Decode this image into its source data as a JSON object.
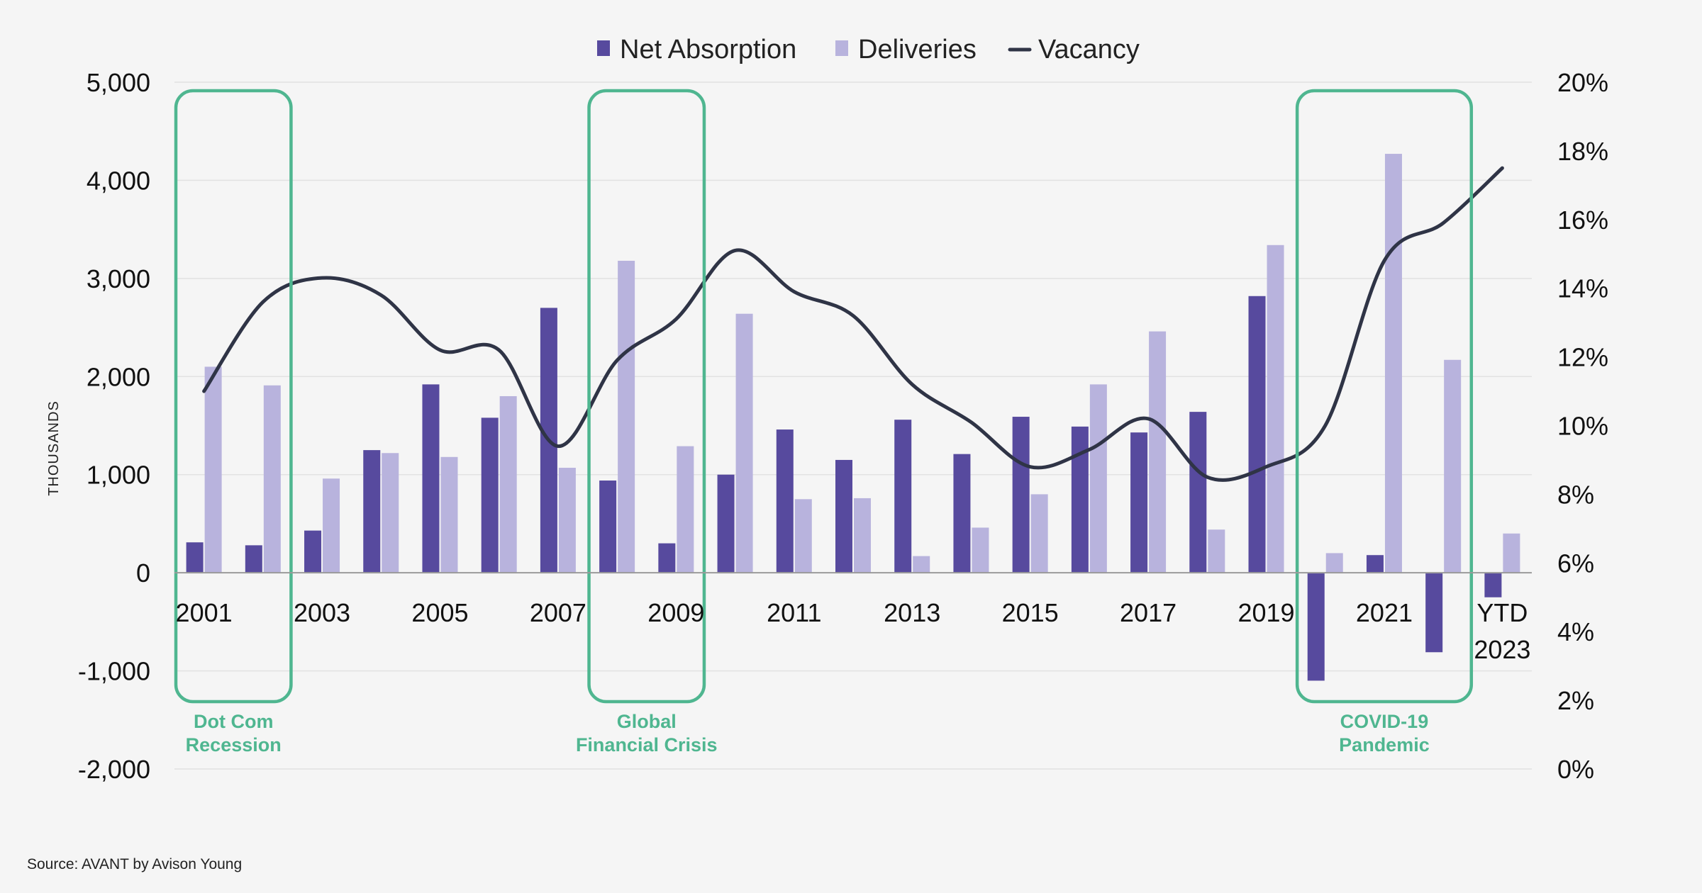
{
  "chart_data": {
    "type": "bar",
    "categories": [
      "2001",
      "2002",
      "2003",
      "2004",
      "2005",
      "2006",
      "2007",
      "2008",
      "2009",
      "2010",
      "2011",
      "2012",
      "2013",
      "2014",
      "2015",
      "2016",
      "2017",
      "2018",
      "2019",
      "2020",
      "2021",
      "2022",
      "YTD 2023"
    ],
    "x_tick_labels": [
      {
        "index": 0,
        "lines": [
          "2001"
        ]
      },
      {
        "index": 2,
        "lines": [
          "2003"
        ]
      },
      {
        "index": 4,
        "lines": [
          "2005"
        ]
      },
      {
        "index": 6,
        "lines": [
          "2007"
        ]
      },
      {
        "index": 8,
        "lines": [
          "2009"
        ]
      },
      {
        "index": 10,
        "lines": [
          "2011"
        ]
      },
      {
        "index": 12,
        "lines": [
          "2013"
        ]
      },
      {
        "index": 14,
        "lines": [
          "2015"
        ]
      },
      {
        "index": 16,
        "lines": [
          "2017"
        ]
      },
      {
        "index": 18,
        "lines": [
          "2019"
        ]
      },
      {
        "index": 20,
        "lines": [
          "2021"
        ]
      },
      {
        "index": 22,
        "lines": [
          "YTD",
          "2023"
        ]
      }
    ],
    "series": [
      {
        "name": "Net Absorption",
        "type": "bar",
        "axis": "left",
        "color": "#574a9e",
        "values": [
          310,
          280,
          430,
          1250,
          1920,
          1580,
          2700,
          940,
          300,
          1000,
          1460,
          1150,
          1560,
          1210,
          1590,
          1490,
          1430,
          1640,
          2820,
          -1100,
          180,
          -810,
          -250
        ]
      },
      {
        "name": "Deliveries",
        "type": "bar",
        "axis": "left",
        "color": "#b8b3dd",
        "values": [
          2100,
          1910,
          960,
          1220,
          1180,
          1800,
          1070,
          3180,
          1290,
          2640,
          750,
          760,
          170,
          460,
          800,
          1920,
          2460,
          440,
          3340,
          200,
          4270,
          2170,
          400
        ]
      },
      {
        "name": "Vacancy",
        "type": "line",
        "axis": "right",
        "color": "#2f3446",
        "values": [
          11.0,
          13.6,
          14.3,
          13.8,
          12.2,
          12.2,
          9.4,
          11.9,
          13.1,
          15.1,
          13.9,
          13.2,
          11.2,
          10.1,
          8.8,
          9.3,
          10.2,
          8.5,
          8.8,
          10.0,
          14.8,
          15.9,
          17.5
        ]
      }
    ],
    "y_left": {
      "label": "THOUSANDS",
      "min": -2000,
      "max": 5000,
      "ticks": [
        5000,
        4000,
        3000,
        2000,
        1000,
        0,
        -1000,
        -2000
      ],
      "tick_labels": [
        "5,000",
        "4,000",
        "3,000",
        "2,000",
        "1,000",
        "0",
        "-1,000",
        "-2,000"
      ]
    },
    "y_right": {
      "label": "",
      "min": 0,
      "max": 20,
      "ticks": [
        20,
        18,
        16,
        14,
        12,
        10,
        8,
        6,
        4,
        2,
        0
      ],
      "tick_labels": [
        "20%",
        "18%",
        "16%",
        "14%",
        "12%",
        "10%",
        "8%",
        "6%",
        "4%",
        "2%",
        "0%"
      ]
    },
    "gridlines": true,
    "legend_position": "top-center",
    "annotations": [
      {
        "start": 0,
        "end": 1,
        "lines": [
          "Dot Com",
          "Recession"
        ],
        "color": "#4fb690"
      },
      {
        "start": 7,
        "end": 8,
        "lines": [
          "Global",
          "Financial Crisis"
        ],
        "color": "#4fb690"
      },
      {
        "start": 19,
        "end": 21,
        "lines": [
          "COVID-19",
          "Pandemic"
        ],
        "color": "#4fb690"
      }
    ],
    "source": "Source: AVANT by Avison Young"
  }
}
